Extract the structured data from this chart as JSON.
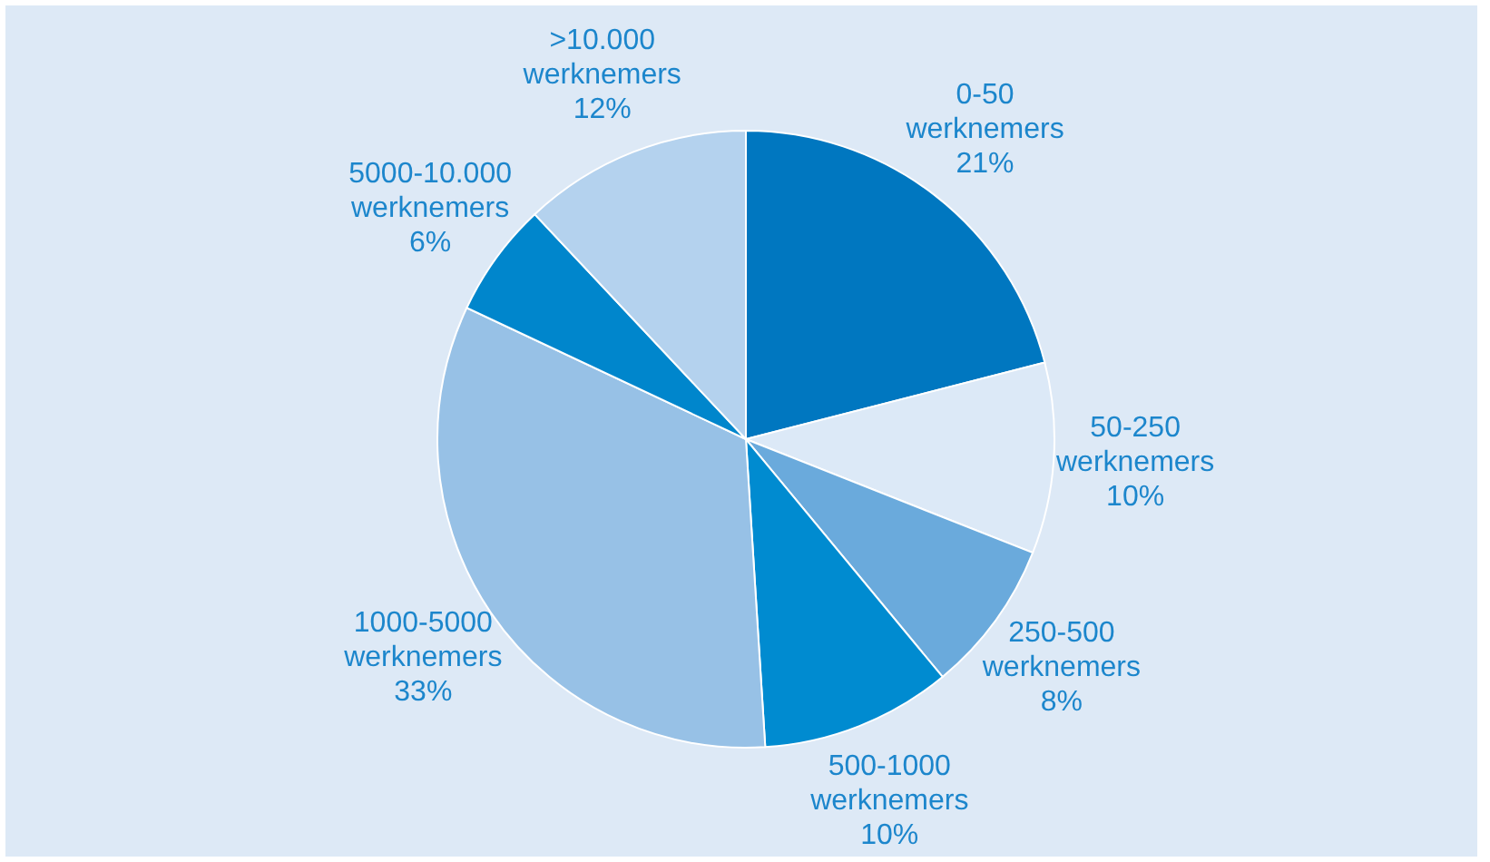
{
  "chart_data": {
    "type": "pie",
    "categories": [
      "0-50 werknemers",
      "50-250 werknemers",
      "250-500 werknemers",
      "500-1000 werknemers",
      "1000-5000 werknemers",
      "5000-10.000 werknemers",
      ">10.000 werknemers"
    ],
    "values": [
      21,
      10,
      8,
      10,
      33,
      6,
      12
    ],
    "value_labels": [
      "21%",
      "10%",
      "8%",
      "10%",
      "33%",
      "6%",
      "12%"
    ],
    "colors": [
      "#0077c0",
      "#dce9f7",
      "#6aaadc",
      "#008bd0",
      "#97c1e6",
      "#0086cc",
      "#b4d2ee"
    ]
  }
}
